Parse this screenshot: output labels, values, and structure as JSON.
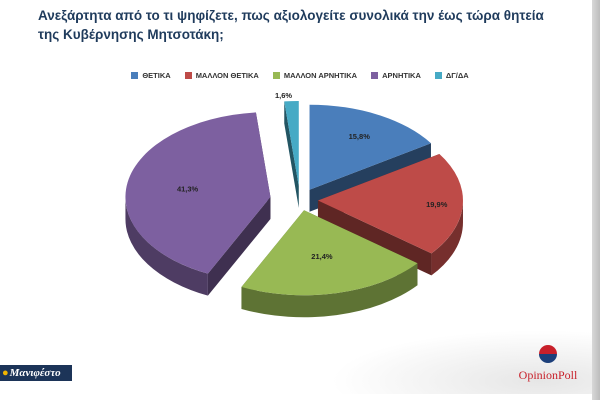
{
  "title_line1": "Ανεξάρτητα από το τι ψηφίζετε, πως αξιολογείτε συνολικά την έως τώρα θητεία",
  "title_line2": "της Κυβέρνησης Μητσοτάκη;",
  "colors": {
    "positive": "#4a7ebb",
    "rather_positive": "#be4b48",
    "rather_negative": "#98b954",
    "negative": "#7d60a0",
    "dk_na": "#46aac5"
  },
  "chart_data": {
    "type": "pie",
    "title": "Ανεξάρτητα από το τι ψηφίζετε, πως αξιολογείτε συνολικά την έως τώρα θητεία της Κυβέρνησης Μητσοτάκη;",
    "legend_position": "top",
    "three_d": true,
    "exploded": true,
    "slices": [
      {
        "label": "ΘΕΤΙΚΑ",
        "value": 15.8,
        "display": "15,8%",
        "color": "#4a7ebb"
      },
      {
        "label": "ΜΑΛΛΟΝ ΘΕΤΙΚΑ",
        "value": 19.9,
        "display": "19,9%",
        "color": "#be4b48"
      },
      {
        "label": "ΜΑΛΛΟΝ ΑΡΝΗΤΙΚΑ",
        "value": 21.4,
        "display": "21,4%",
        "color": "#98b954"
      },
      {
        "label": "ΑΡΝΗΤΙΚΑ",
        "value": 41.3,
        "display": "41,3%",
        "color": "#7d60a0"
      },
      {
        "label": "ΔΓ/ΔΑ",
        "value": 1.6,
        "display": "1,6%",
        "color": "#46aac5"
      }
    ]
  },
  "logos": {
    "left": "Μανιφέστο",
    "right": "OpinionPoll"
  }
}
